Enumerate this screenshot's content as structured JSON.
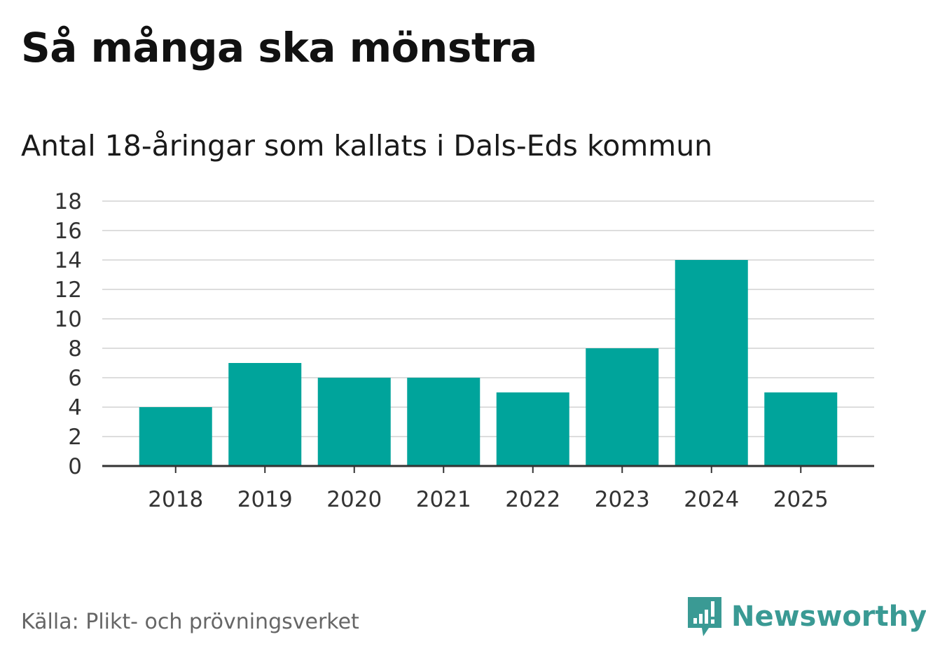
{
  "colors": {
    "bar": "#00a49b",
    "brand": "#3a9a94",
    "grid": "#dddddd",
    "axis": "#333333",
    "tick_text": "#333333"
  },
  "chart_data": {
    "type": "bar",
    "title": "Så många ska mönstra",
    "subtitle": "Antal 18-åringar som kallats i Dals-Eds kommun",
    "categories": [
      "2018",
      "2019",
      "2020",
      "2021",
      "2022",
      "2023",
      "2024",
      "2025"
    ],
    "values": [
      4,
      7,
      6,
      6,
      5,
      8,
      14,
      5
    ],
    "ylim": [
      0,
      18
    ],
    "yticks": [
      0,
      2,
      4,
      6,
      8,
      10,
      12,
      14,
      16,
      18
    ],
    "xlabel": "",
    "ylabel": "",
    "grid": true
  },
  "footer": {
    "source": "Källa: Plikt- och prövningsverket",
    "brand_name": "Newsworthy",
    "brand_icon": "newsworthy-logo-icon"
  }
}
